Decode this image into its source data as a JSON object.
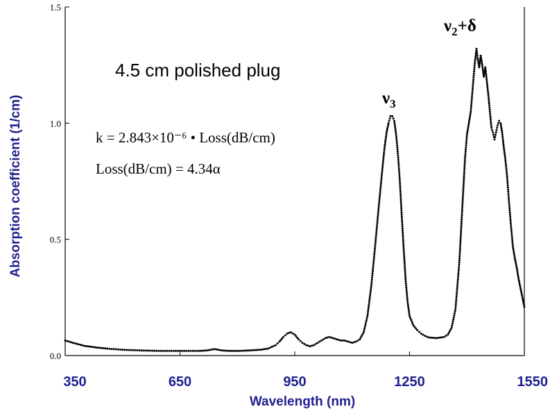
{
  "chart_data": {
    "type": "scatter",
    "title": "4.5 cm polished plug",
    "xlabel": "Wavelength (nm)",
    "ylabel": "Absorption coefficient (1/cm)",
    "xlim": [
      350,
      1550
    ],
    "ylim": [
      0.0,
      1.5
    ],
    "x_ticks": [
      "350",
      "650",
      "950",
      "1250",
      "1550"
    ],
    "x_tick_values": [
      350,
      650,
      950,
      1250,
      1550
    ],
    "y_ticks": [
      "0.0",
      "0.5",
      "1.0",
      "1.5"
    ],
    "y_tick_values": [
      0.0,
      0.5,
      1.0,
      1.5
    ],
    "grid": false,
    "marker_color": "#000000",
    "label_color": "#1f1f8f",
    "formula_1": "k = 2.843×10⁻⁶ • Loss(dB/cm)",
    "formula_2": "Loss(dB/cm) = 4.34α",
    "annotations": [
      {
        "base": "ν",
        "sub": "3",
        "suffix": "",
        "x": 1200,
        "y": 1.07
      },
      {
        "base": "ν",
        "sub": "2",
        "suffix": "+δ",
        "x": 1420,
        "y": 1.38
      }
    ],
    "series": [
      {
        "values": [
          [
            350,
            0.065
          ],
          [
            370,
            0.055
          ],
          [
            400,
            0.042
          ],
          [
            430,
            0.035
          ],
          [
            460,
            0.03
          ],
          [
            500,
            0.025
          ],
          [
            550,
            0.022
          ],
          [
            600,
            0.02
          ],
          [
            650,
            0.02
          ],
          [
            700,
            0.02
          ],
          [
            720,
            0.022
          ],
          [
            740,
            0.028
          ],
          [
            760,
            0.022
          ],
          [
            780,
            0.02
          ],
          [
            800,
            0.02
          ],
          [
            830,
            0.022
          ],
          [
            860,
            0.025
          ],
          [
            880,
            0.03
          ],
          [
            900,
            0.045
          ],
          [
            910,
            0.06
          ],
          [
            920,
            0.08
          ],
          [
            930,
            0.095
          ],
          [
            940,
            0.1
          ],
          [
            950,
            0.09
          ],
          [
            960,
            0.07
          ],
          [
            970,
            0.055
          ],
          [
            980,
            0.045
          ],
          [
            990,
            0.04
          ],
          [
            1000,
            0.045
          ],
          [
            1010,
            0.055
          ],
          [
            1020,
            0.065
          ],
          [
            1030,
            0.075
          ],
          [
            1040,
            0.08
          ],
          [
            1050,
            0.075
          ],
          [
            1060,
            0.07
          ],
          [
            1070,
            0.065
          ],
          [
            1080,
            0.065
          ],
          [
            1090,
            0.06
          ],
          [
            1100,
            0.055
          ],
          [
            1110,
            0.06
          ],
          [
            1120,
            0.07
          ],
          [
            1130,
            0.1
          ],
          [
            1140,
            0.17
          ],
          [
            1150,
            0.3
          ],
          [
            1160,
            0.47
          ],
          [
            1170,
            0.65
          ],
          [
            1180,
            0.82
          ],
          [
            1185,
            0.9
          ],
          [
            1190,
            0.96
          ],
          [
            1195,
            1.0
          ],
          [
            1200,
            1.03
          ],
          [
            1205,
            1.03
          ],
          [
            1210,
            1.01
          ],
          [
            1215,
            0.95
          ],
          [
            1220,
            0.86
          ],
          [
            1225,
            0.74
          ],
          [
            1230,
            0.59
          ],
          [
            1235,
            0.45
          ],
          [
            1240,
            0.32
          ],
          [
            1245,
            0.23
          ],
          [
            1250,
            0.17
          ],
          [
            1260,
            0.13
          ],
          [
            1270,
            0.11
          ],
          [
            1280,
            0.095
          ],
          [
            1290,
            0.085
          ],
          [
            1300,
            0.078
          ],
          [
            1320,
            0.075
          ],
          [
            1340,
            0.08
          ],
          [
            1350,
            0.09
          ],
          [
            1360,
            0.12
          ],
          [
            1370,
            0.2
          ],
          [
            1380,
            0.4
          ],
          [
            1385,
            0.55
          ],
          [
            1390,
            0.7
          ],
          [
            1395,
            0.85
          ],
          [
            1400,
            0.95
          ],
          [
            1405,
            1.0
          ],
          [
            1410,
            1.05
          ],
          [
            1415,
            1.15
          ],
          [
            1420,
            1.25
          ],
          [
            1425,
            1.32
          ],
          [
            1428,
            1.28
          ],
          [
            1432,
            1.24
          ],
          [
            1436,
            1.29
          ],
          [
            1440,
            1.25
          ],
          [
            1444,
            1.2
          ],
          [
            1448,
            1.24
          ],
          [
            1452,
            1.18
          ],
          [
            1456,
            1.12
          ],
          [
            1460,
            1.05
          ],
          [
            1464,
            0.98
          ],
          [
            1468,
            0.96
          ],
          [
            1472,
            0.93
          ],
          [
            1476,
            0.96
          ],
          [
            1480,
            0.99
          ],
          [
            1484,
            1.01
          ],
          [
            1488,
            1.0
          ],
          [
            1492,
            0.96
          ],
          [
            1496,
            0.9
          ],
          [
            1500,
            0.85
          ],
          [
            1505,
            0.77
          ],
          [
            1510,
            0.66
          ],
          [
            1515,
            0.56
          ],
          [
            1520,
            0.47
          ],
          [
            1525,
            0.42
          ],
          [
            1530,
            0.38
          ],
          [
            1535,
            0.33
          ],
          [
            1540,
            0.29
          ],
          [
            1545,
            0.25
          ],
          [
            1550,
            0.21
          ]
        ]
      }
    ]
  }
}
